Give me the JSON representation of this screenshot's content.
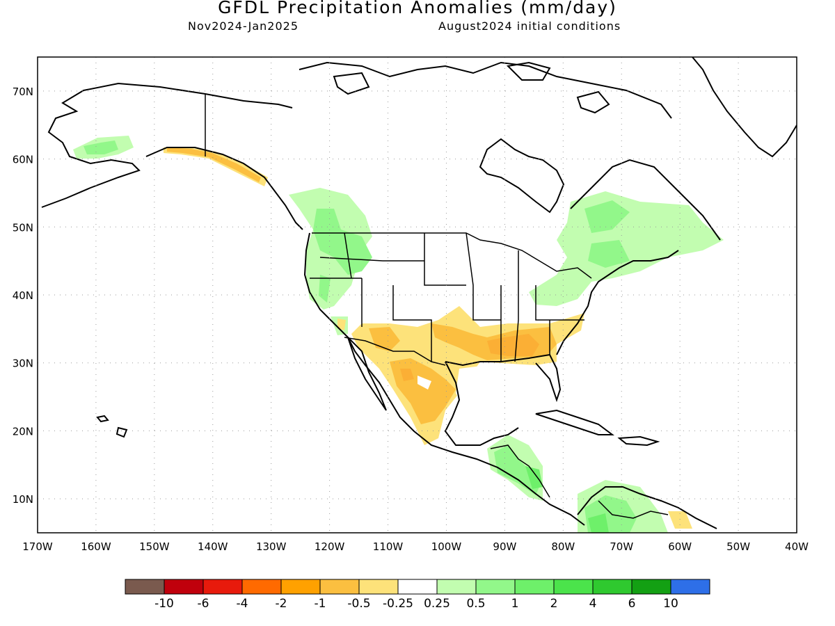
{
  "title": "GFDL Precipitation Anomalies (mm/day)",
  "subtitle_left": "Nov2024-Jan2025",
  "subtitle_right": "August2024 initial conditions",
  "axes": {
    "lon_ticks": [
      "170W",
      "160W",
      "150W",
      "140W",
      "130W",
      "120W",
      "110W",
      "100W",
      "90W",
      "80W",
      "70W",
      "60W",
      "50W",
      "40W"
    ],
    "lat_ticks": [
      "70N",
      "60N",
      "50N",
      "40N",
      "30N",
      "20N",
      "10N"
    ]
  },
  "legend": {
    "colors": [
      "#7a5a4e",
      "#c0000c",
      "#e81a0c",
      "#ff6a00",
      "#ffa100",
      "#fbbf40",
      "#fde27a",
      "#ffffff",
      "#c2fdb0",
      "#92f78a",
      "#6ef06a",
      "#4be34b",
      "#2fc92f",
      "#13a013",
      "#2e6fe8"
    ],
    "labels": [
      "-10",
      "-6",
      "-4",
      "-2",
      "-1",
      "-0.5",
      "-0.25",
      "0.25",
      "0.5",
      "1",
      "2",
      "4",
      "6",
      "10"
    ]
  },
  "chart_data": {
    "type": "map",
    "title": "GFDL Precipitation Anomalies (mm/day)",
    "region": "North America",
    "lon_range": [
      -170,
      -40
    ],
    "lat_range": [
      5,
      75
    ],
    "grid": true,
    "anomaly_regions": [
      {
        "area": "Southern Alaska coast",
        "category": "-0.5 to -0.25"
      },
      {
        "area": "Southwest US / Arizona / New Mexico",
        "category": "-0.5 to -0.25"
      },
      {
        "area": "Texas and Gulf Coast",
        "category": "-0.5 to -0.25"
      },
      {
        "area": "Louisiana to Georgia",
        "category": "-1 to -0.5"
      },
      {
        "area": "Northern and central Mexico",
        "category": "-1 to -0.5"
      },
      {
        "area": "Pacific Northwest",
        "category": "0.25 to 0.5"
      },
      {
        "area": "Idaho / western Montana",
        "category": "0.5 to 1"
      },
      {
        "area": "Great Lakes / Northeast / Quebec",
        "category": "0.25 to 0.5"
      },
      {
        "area": "Western Alaska",
        "category": "0.25 to 0.5"
      },
      {
        "area": "Central America",
        "category": "0.5 to 1"
      },
      {
        "area": "Northwest South America",
        "category": "0.5 to 1"
      }
    ]
  }
}
